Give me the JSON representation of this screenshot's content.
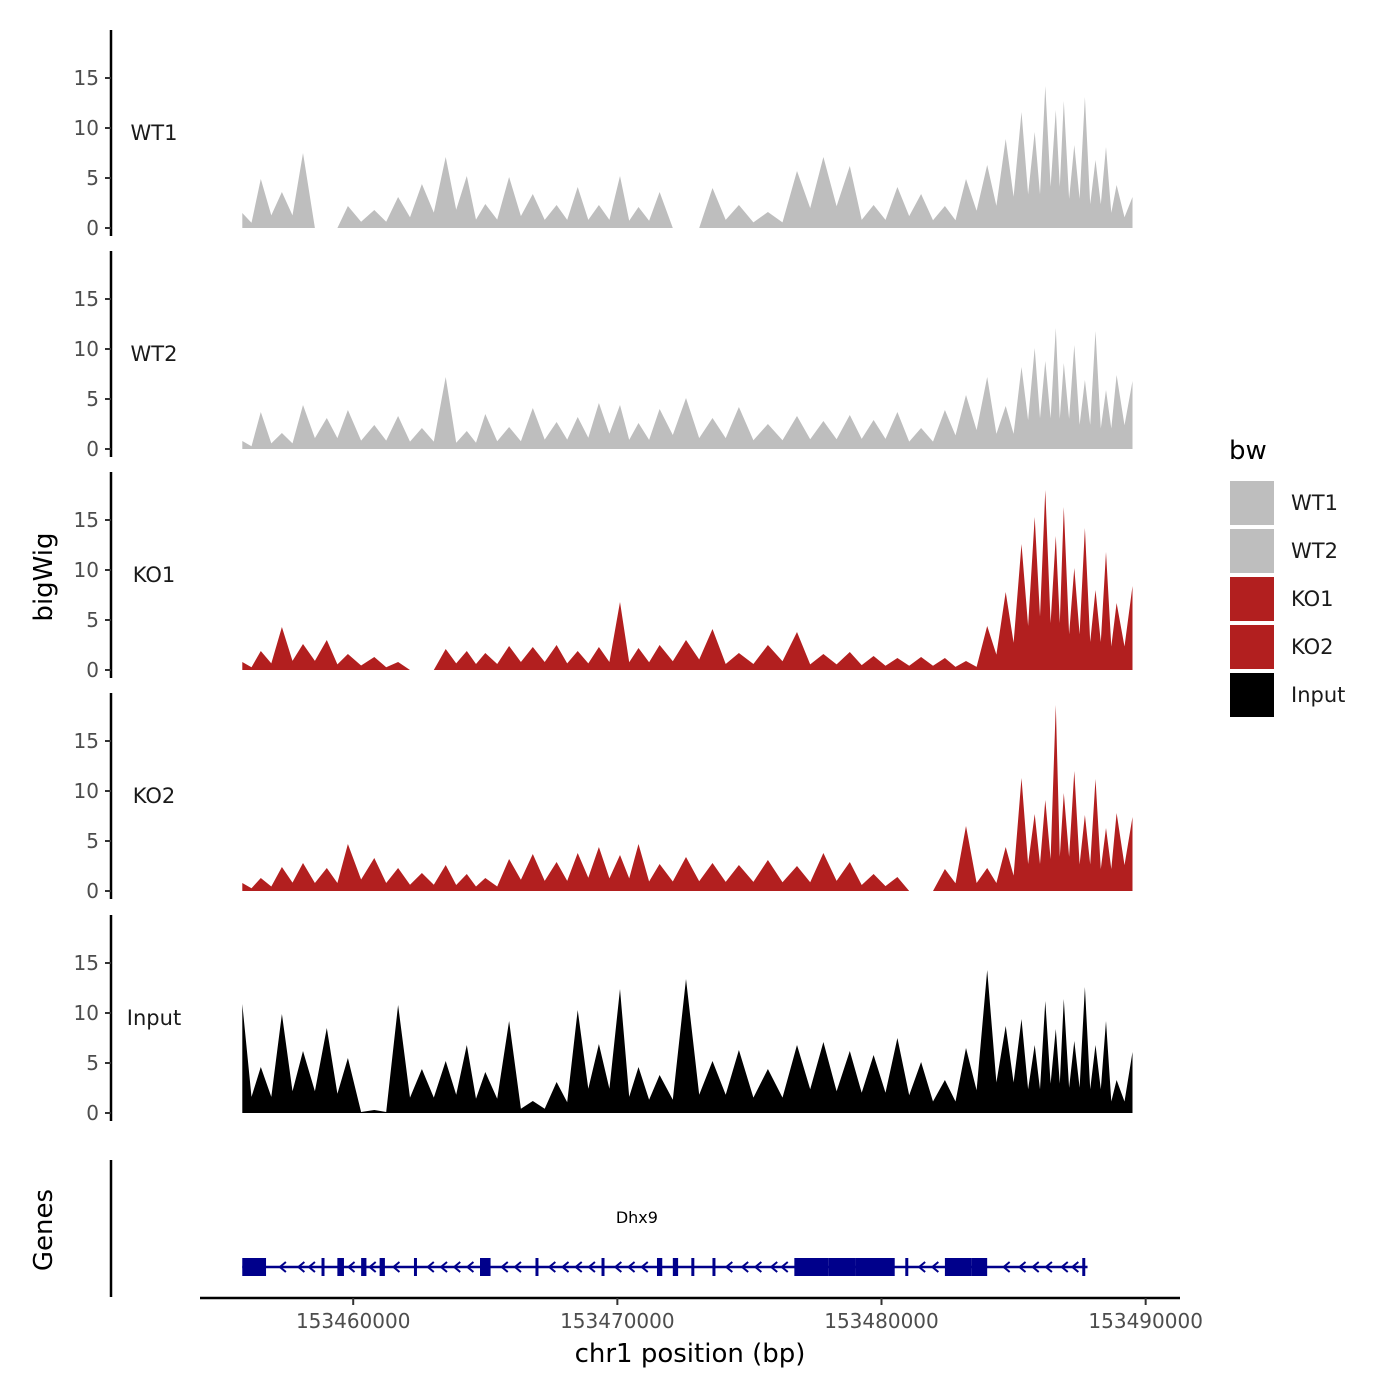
{
  "chart_data": {
    "type": "area",
    "title": "",
    "ylabel": "bigWig",
    "genes_label": "Genes",
    "xlabel": "chr1 position (bp)",
    "x_range": [
      153454200,
      153491300
    ],
    "data_x_range": [
      153455800,
      153489500
    ],
    "ylim": [
      0,
      19
    ],
    "y_ticks": [
      0,
      5,
      10,
      15
    ],
    "x_ticks": [
      {
        "value": 153460000,
        "label": "153460000"
      },
      {
        "value": 153470000,
        "label": "153470000"
      },
      {
        "value": 153480000,
        "label": "153480000"
      },
      {
        "value": 153490000,
        "label": "153490000"
      }
    ],
    "legend": {
      "title": "bw",
      "position": "right",
      "entries": [
        {
          "label": "WT1",
          "color": "#bebebe"
        },
        {
          "label": "WT2",
          "color": "#bebebe"
        },
        {
          "label": "KO1",
          "color": "#b21f1f"
        },
        {
          "label": "KO2",
          "color": "#b21f1f"
        },
        {
          "label": "Input",
          "color": "#000000"
        }
      ]
    },
    "series": [
      {
        "name": "WT1",
        "color": "#bebebe",
        "x": [
          153455800,
          153456500,
          153457300,
          153458100,
          153459000,
          153459800,
          153460800,
          153461700,
          153462600,
          153463500,
          153464300,
          153465000,
          153465900,
          153466800,
          153467700,
          153468500,
          153469300,
          153470100,
          153470800,
          153471600,
          153472600,
          153473600,
          153474600,
          153475700,
          153476800,
          153477800,
          153478800,
          153479700,
          153480600,
          153481500,
          153482400,
          153483200,
          153484000,
          153484700,
          153485300,
          153485800,
          153486200,
          153486600,
          153486900,
          153487300,
          153487700,
          153488100,
          153488500,
          153488900,
          153489500
        ],
        "values": [
          1.5,
          4.9,
          3.6,
          7.5,
          0,
          2.2,
          1.8,
          3.1,
          4.4,
          7.1,
          5.2,
          2.4,
          5.1,
          3.4,
          2.3,
          4.1,
          2.3,
          5.2,
          2.1,
          3.6,
          0,
          4.0,
          2.3,
          1.6,
          5.7,
          7.1,
          6.2,
          2.3,
          4.1,
          3.4,
          2.2,
          4.9,
          6.3,
          8.9,
          11.6,
          9.6,
          14.2,
          11.8,
          12.7,
          8.3,
          13.1,
          6.8,
          8.1,
          4.3,
          3.1
        ]
      },
      {
        "name": "WT2",
        "color": "#bebebe",
        "x": [
          153455800,
          153456500,
          153457300,
          153458100,
          153459000,
          153459800,
          153460800,
          153461700,
          153462600,
          153463500,
          153464300,
          153465000,
          153465900,
          153466800,
          153467700,
          153468500,
          153469300,
          153470100,
          153470800,
          153471600,
          153472600,
          153473600,
          153474600,
          153475700,
          153476800,
          153477800,
          153478800,
          153479700,
          153480600,
          153481500,
          153482400,
          153483200,
          153484000,
          153484700,
          153485300,
          153485800,
          153486200,
          153486600,
          153486900,
          153487300,
          153487700,
          153488100,
          153488500,
          153488900,
          153489500
        ],
        "values": [
          0.8,
          3.7,
          1.6,
          4.4,
          3.1,
          3.9,
          2.4,
          3.3,
          2.1,
          7.2,
          1.8,
          3.5,
          2.2,
          4.1,
          2.7,
          3.2,
          4.6,
          4.4,
          2.6,
          4.0,
          5.1,
          3.1,
          4.2,
          2.5,
          3.3,
          2.8,
          3.4,
          2.9,
          3.7,
          2.1,
          3.9,
          5.4,
          7.2,
          4.3,
          8.2,
          10.1,
          8.8,
          12.1,
          8.6,
          10.4,
          6.9,
          11.8,
          5.9,
          7.4,
          6.8
        ]
      },
      {
        "name": "KO1",
        "color": "#b21f1f",
        "x": [
          153455800,
          153456500,
          153457300,
          153458100,
          153459000,
          153459800,
          153460800,
          153461700,
          153462600,
          153463500,
          153464300,
          153465000,
          153465900,
          153466800,
          153467700,
          153468500,
          153469300,
          153470100,
          153470800,
          153471600,
          153472600,
          153473600,
          153474600,
          153475700,
          153476800,
          153477800,
          153478800,
          153479700,
          153480600,
          153481500,
          153482400,
          153483200,
          153484000,
          153484700,
          153485300,
          153485800,
          153486200,
          153486600,
          153486900,
          153487300,
          153487700,
          153488100,
          153488500,
          153488900,
          153489500
        ],
        "values": [
          0.8,
          1.9,
          4.3,
          2.6,
          3.0,
          1.6,
          1.3,
          0.8,
          0,
          2.1,
          1.9,
          1.7,
          2.4,
          2.3,
          2.5,
          1.9,
          2.3,
          6.8,
          2.2,
          2.5,
          3.0,
          4.1,
          1.7,
          2.5,
          3.8,
          1.6,
          1.8,
          1.4,
          1.2,
          1.3,
          1.2,
          0.9,
          4.4,
          7.8,
          12.6,
          15.3,
          18.0,
          13.4,
          16.3,
          10.2,
          14.2,
          8.0,
          11.8,
          6.7,
          8.4
        ]
      },
      {
        "name": "KO2",
        "color": "#b21f1f",
        "x": [
          153455800,
          153456500,
          153457300,
          153458100,
          153459000,
          153459800,
          153460800,
          153461700,
          153462600,
          153463500,
          153464300,
          153465000,
          153465900,
          153466800,
          153467700,
          153468500,
          153469300,
          153470100,
          153470800,
          153471600,
          153472600,
          153473600,
          153474600,
          153475700,
          153476800,
          153477800,
          153478800,
          153479700,
          153480600,
          153481500,
          153482400,
          153483200,
          153484000,
          153484700,
          153485300,
          153485800,
          153486200,
          153486600,
          153486900,
          153487300,
          153487700,
          153488100,
          153488500,
          153488900,
          153489500
        ],
        "values": [
          0.8,
          1.3,
          2.4,
          2.8,
          2.3,
          4.7,
          3.3,
          2.3,
          1.8,
          2.6,
          1.7,
          1.3,
          3.2,
          3.7,
          2.9,
          3.8,
          4.4,
          3.6,
          4.7,
          2.7,
          3.4,
          2.8,
          2.6,
          3.1,
          2.5,
          3.8,
          2.9,
          1.7,
          1.4,
          0,
          2.2,
          6.5,
          2.3,
          4.4,
          11.3,
          7.7,
          9.1,
          18.6,
          9.8,
          12.0,
          7.6,
          11.2,
          6.3,
          7.8,
          7.4
        ]
      },
      {
        "name": "Input",
        "color": "#000000",
        "x": [
          153455800,
          153456500,
          153457300,
          153458100,
          153459000,
          153459800,
          153460800,
          153461700,
          153462600,
          153463500,
          153464300,
          153465000,
          153465900,
          153466800,
          153467700,
          153468500,
          153469300,
          153470100,
          153470800,
          153471600,
          153472600,
          153473600,
          153474600,
          153475700,
          153476800,
          153477800,
          153478800,
          153479700,
          153480600,
          153481500,
          153482400,
          153483200,
          153484000,
          153484700,
          153485300,
          153485800,
          153486200,
          153486600,
          153486900,
          153487300,
          153487700,
          153488100,
          153488500,
          153488900,
          153489500
        ],
        "values": [
          10.9,
          4.6,
          9.9,
          6.2,
          8.5,
          5.5,
          0.3,
          10.8,
          4.4,
          5.2,
          6.8,
          4.1,
          9.2,
          1.2,
          3.1,
          10.3,
          6.9,
          12.4,
          4.6,
          3.8,
          13.4,
          5.2,
          6.3,
          4.4,
          6.8,
          7.1,
          6.2,
          5.8,
          7.5,
          5.1,
          3.3,
          6.5,
          14.3,
          8.7,
          9.4,
          6.8,
          11.2,
          8.4,
          11.4,
          7.2,
          12.6,
          6.8,
          9.2,
          3.3,
          6.1
        ]
      }
    ],
    "genes": [
      {
        "name": "Dhx9",
        "strand": "-",
        "start": 153455800,
        "end": 153487800,
        "color": "#00008b",
        "exons": [
          [
            153455800,
            153456700
          ],
          [
            153458800,
            153458900
          ],
          [
            153459400,
            153459650
          ],
          [
            153460300,
            153460500
          ],
          [
            153461000,
            153461200
          ],
          [
            153462300,
            153462400
          ],
          [
            153464800,
            153465200
          ],
          [
            153466900,
            153467000
          ],
          [
            153469400,
            153469500
          ],
          [
            153471500,
            153471700
          ],
          [
            153472100,
            153472300
          ],
          [
            153472800,
            153472900
          ],
          [
            153473600,
            153473700
          ],
          [
            153476700,
            153478000
          ],
          [
            153478000,
            153479000
          ],
          [
            153479000,
            153480500
          ],
          [
            153480900,
            153481000
          ],
          [
            153482400,
            153483400
          ],
          [
            153483400,
            153484000
          ],
          [
            153487600,
            153487700
          ]
        ],
        "intron_arrows": [
          153457300,
          153458000,
          153458400,
          153459900,
          153460700,
          153461600,
          153462900,
          153463400,
          153463900,
          153464400,
          153465700,
          153466200,
          153467500,
          153468000,
          153468500,
          153469000,
          153470000,
          153470500,
          153471000,
          153474200,
          153474800,
          153475300,
          153475900,
          153476300,
          153481500,
          153482000,
          153484700,
          153485300,
          153485800,
          153486300,
          153486900,
          153487300
        ]
      }
    ]
  }
}
